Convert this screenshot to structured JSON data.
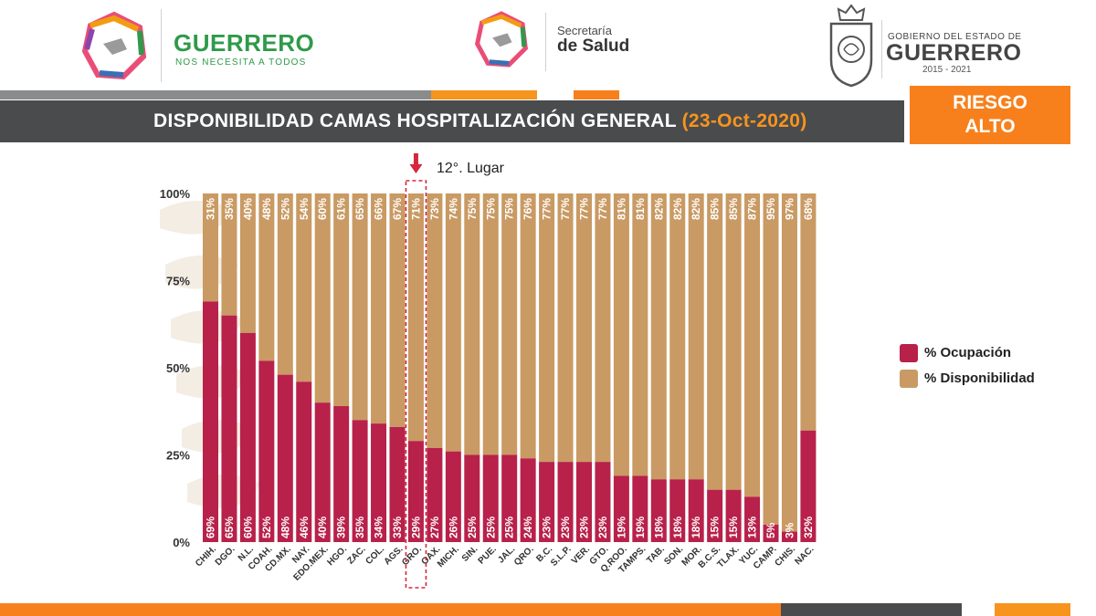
{
  "header": {
    "guerrero_title": "GUERRERO",
    "guerrero_subtitle": "NOS NECESITA A TODOS",
    "salud_line1": "Secretaría",
    "salud_line2": "de Salud",
    "gob_line1": "GOBIERNO DEL ESTADO DE",
    "gob_line2": "GUERRERO",
    "gob_line3": "2015 - 2021"
  },
  "title": {
    "main": "DISPONIBILIDAD CAMAS HOSPITALIZACIÓN GENERAL",
    "date": "(23-Oct-2020)"
  },
  "risk": {
    "line1": "RIESGO",
    "line2": "ALTO"
  },
  "annotation": "12°. Lugar",
  "colors": {
    "ocupacion": "#b8214a",
    "disponibilidad": "#c99a63",
    "accent": "#f7801c",
    "title_bar": "#4a4b4d"
  },
  "legend": {
    "ocupacion": "% Ocupación",
    "disponibilidad": "% Disponibilidad"
  },
  "chart_data": {
    "type": "bar",
    "stacked": true,
    "title": "DISPONIBILIDAD CAMAS HOSPITALIZACIÓN GENERAL (23-Oct-2020)",
    "ylim": [
      0,
      100
    ],
    "yticks": [
      "0%",
      "25%",
      "50%",
      "75%",
      "100%"
    ],
    "highlight": "GRO.",
    "categories": [
      "CHIH.",
      "DGO.",
      "N.L.",
      "COAH.",
      "CD.MX.",
      "NAY.",
      "EDO.MEX.",
      "HGO.",
      "ZAC.",
      "COL.",
      "AGS.",
      "GRO.",
      "OAX.",
      "MICH.",
      "SIN.",
      "PUE.",
      "JAL.",
      "QRO.",
      "B.C.",
      "S.L.P.",
      "VER.",
      "GTO.",
      "Q.ROO.",
      "TAMPS.",
      "TAB.",
      "SON.",
      "MOR.",
      "B.C.S.",
      "TLAX.",
      "YUC.",
      "CAMP.",
      "CHIS.",
      "NAC."
    ],
    "series": [
      {
        "name": "% Ocupación",
        "values": [
          69,
          65,
          60,
          52,
          48,
          46,
          40,
          39,
          35,
          34,
          33,
          29,
          27,
          26,
          25,
          25,
          25,
          24,
          23,
          23,
          23,
          23,
          19,
          19,
          18,
          18,
          18,
          15,
          15,
          13,
          5,
          3,
          32
        ],
        "labels": [
          "69%",
          "65%",
          "60%",
          "52%",
          "48%",
          "46%",
          "40%",
          "39%",
          "35%",
          "34%",
          "33%",
          "29%",
          "27%",
          "26%",
          "25%",
          "25%",
          "25%",
          "24%",
          "23%",
          "23%",
          "23%",
          "23%",
          "19%",
          "19%",
          "18%",
          "18%",
          "18%",
          "15%",
          "15%",
          "13%",
          "5%",
          "3%",
          "32%"
        ]
      },
      {
        "name": "% Disponibilidad",
        "values": [
          31,
          35,
          40,
          48,
          52,
          54,
          60,
          61,
          65,
          66,
          67,
          71,
          73,
          74,
          75,
          75,
          75,
          76,
          77,
          77,
          77,
          77,
          81,
          81,
          82,
          82,
          82,
          85,
          85,
          87,
          95,
          97,
          68
        ],
        "labels": [
          "31%",
          "35%",
          "40%",
          "48%",
          "52%",
          "54%",
          "60%",
          "61%",
          "65%",
          "66%",
          "67%",
          "71%",
          "73%",
          "74%",
          "75%",
          "75%",
          "75%",
          "76%",
          "77%",
          "77%",
          "77%",
          "77%",
          "81%",
          "81%",
          "82%",
          "82%",
          "82%",
          "85%",
          "85%",
          "87%",
          "95%",
          "97%",
          "68%"
        ]
      }
    ]
  }
}
